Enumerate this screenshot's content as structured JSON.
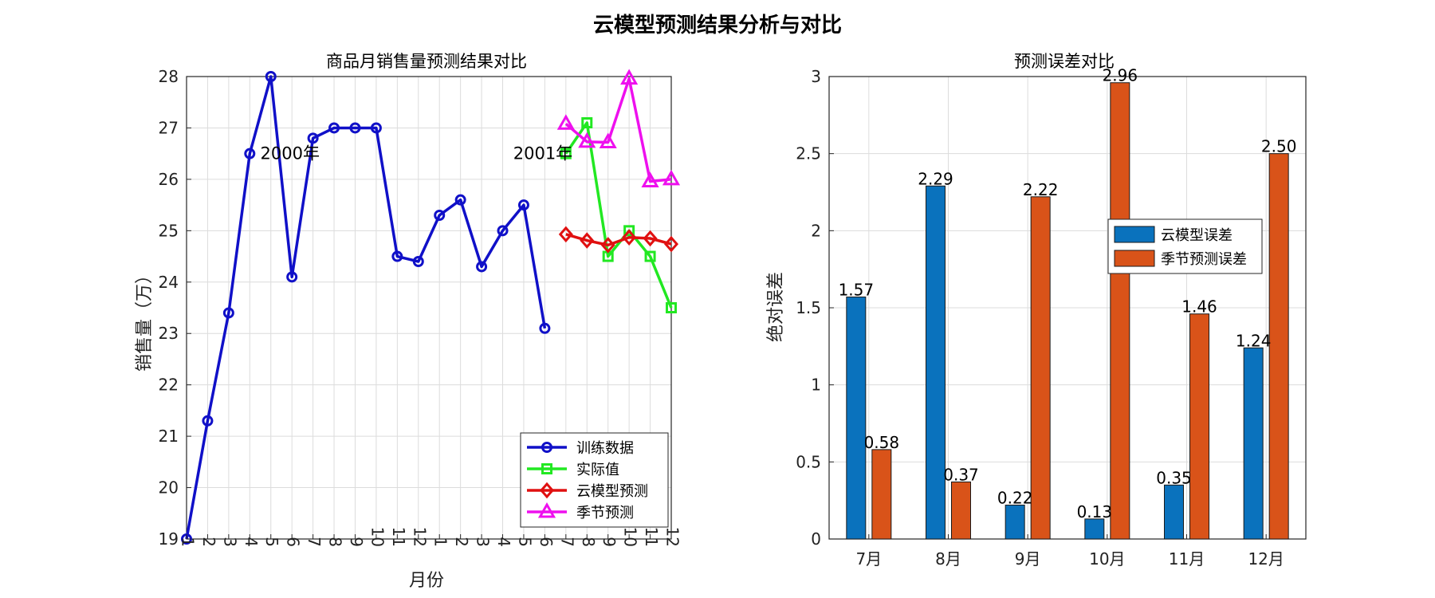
{
  "figure": {
    "supertitle": "云模型预测结果分析与对比"
  },
  "chart_data": [
    {
      "type": "line",
      "title": "商品月销售量预测结果对比",
      "xlabel": "月份",
      "ylabel": "销售量（万）",
      "ylim": [
        19,
        28
      ],
      "yticks": [
        19,
        20,
        21,
        22,
        23,
        24,
        25,
        26,
        27,
        28
      ],
      "xlim": [
        1,
        24
      ],
      "xtick_labels": [
        "1",
        "2",
        "3",
        "4",
        "5",
        "6",
        "7",
        "8",
        "9",
        "10",
        "11",
        "12",
        "1",
        "2",
        "3",
        "4",
        "5",
        "6",
        "7",
        "8",
        "9",
        "10",
        "11",
        "12"
      ],
      "grid": true,
      "legend_position": "bottom-right",
      "annotations": [
        {
          "text": "2000年",
          "x": 4.5,
          "y": 26.5
        },
        {
          "text": "2001年",
          "x": 16.5,
          "y": 26.5
        }
      ],
      "series": [
        {
          "name": "训练数据",
          "color": "#1010c8",
          "marker": "circle",
          "x": [
            1,
            2,
            3,
            4,
            5,
            6,
            7,
            8,
            9,
            10,
            11,
            12,
            13,
            14,
            15,
            16,
            17,
            18
          ],
          "y": [
            19,
            21.3,
            23.4,
            26.5,
            28,
            24.1,
            26.8,
            27,
            27,
            27,
            24.5,
            24.4,
            25.3,
            25.6,
            24.3,
            25,
            25.5,
            23.1
          ]
        },
        {
          "name": "实际值",
          "color": "#22e822",
          "marker": "square",
          "x": [
            19,
            20,
            21,
            22,
            23,
            24
          ],
          "y": [
            26.5,
            27.1,
            24.5,
            25.0,
            24.5,
            23.5
          ]
        },
        {
          "name": "云模型预测",
          "color": "#e01010",
          "marker": "diamond",
          "x": [
            19,
            20,
            21,
            22,
            23,
            24
          ],
          "y": [
            24.93,
            24.81,
            24.72,
            24.87,
            24.85,
            24.74
          ]
        },
        {
          "name": "季节预测",
          "color": "#ee10ee",
          "marker": "triangle",
          "x": [
            19,
            20,
            21,
            22,
            23,
            24
          ],
          "y": [
            27.08,
            26.73,
            26.72,
            27.96,
            25.96,
            26.0
          ]
        }
      ]
    },
    {
      "type": "bar",
      "title": "预测误差对比",
      "xlabel": "",
      "ylabel": "绝对误差",
      "ylim": [
        0,
        3
      ],
      "yticks": [
        0,
        0.5,
        1,
        1.5,
        2,
        2.5,
        3
      ],
      "ytick_labels": [
        "0",
        "0.5",
        "1",
        "1.5",
        "2",
        "2.5",
        "3"
      ],
      "categories": [
        "7月",
        "8月",
        "9月",
        "10月",
        "11月",
        "12月"
      ],
      "grid": true,
      "legend_position": "upper-right",
      "series": [
        {
          "name": "云模型误差",
          "color": "#0a72bd",
          "values": [
            1.57,
            2.29,
            0.22,
            0.13,
            0.35,
            1.24
          ],
          "labels": [
            "1.57",
            "2.29",
            "0.22",
            "0.13",
            "0.35",
            "1.24"
          ]
        },
        {
          "name": "季节预测误差",
          "color": "#d95319",
          "values": [
            0.58,
            0.37,
            2.22,
            2.96,
            1.46,
            2.5
          ],
          "labels": [
            "0.58",
            "0.37",
            "2.22",
            "2.96",
            "1.46",
            "2.50"
          ]
        }
      ]
    }
  ]
}
